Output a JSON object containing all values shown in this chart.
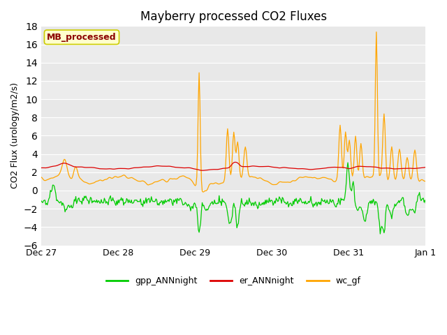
{
  "title": "Mayberry processed CO2 Fluxes",
  "ylabel": "CO2 Flux (urology/m2/s)",
  "ylim": [
    -6,
    18
  ],
  "yticks": [
    -6,
    -4,
    -2,
    0,
    2,
    4,
    6,
    8,
    10,
    12,
    14,
    16,
    18
  ],
  "fig_bg_color": "#ffffff",
  "plot_bg_color": "#e8e8e8",
  "grid_color": "#ffffff",
  "gpp_color": "#00cc00",
  "er_color": "#dd0000",
  "wc_color": "#ffa500",
  "legend_label_gpp": "gpp_ANNnight",
  "legend_label_er": "er_ANNnight",
  "legend_label_wc": "wc_gf",
  "annotation_text": "MB_processed",
  "annotation_color": "#8b0000",
  "annotation_bg": "#ffffcc",
  "annotation_edge": "#cccc00",
  "n_points": 500,
  "x_start": 0,
  "x_end": 5,
  "x_tick_positions": [
    0,
    1,
    2,
    3,
    4,
    5
  ],
  "x_tick_labels": [
    "Dec 27",
    "Dec 28",
    "Dec 29",
    "Dec 30",
    "Dec 31",
    "Jan 1"
  ],
  "title_fontsize": 12,
  "axis_fontsize": 9,
  "legend_fontsize": 9
}
